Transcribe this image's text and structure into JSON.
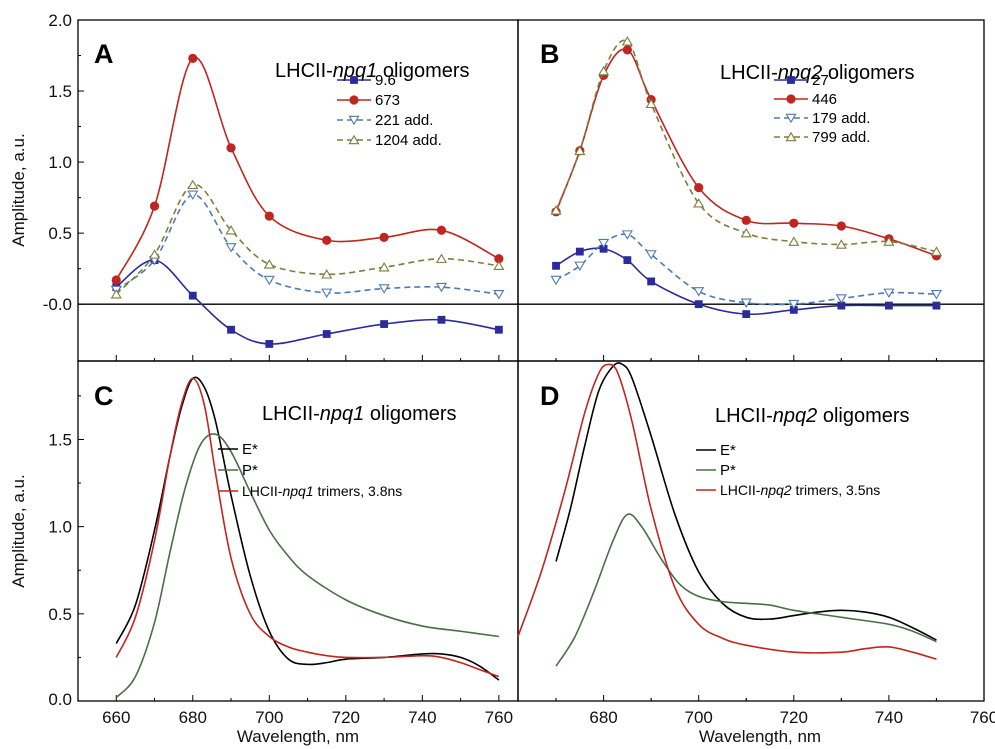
{
  "chart_data": [
    {
      "panel": "A",
      "type": "line",
      "title": "LHCII-npq1 oligomers",
      "title_prefix": "LHCII-",
      "title_italic": "npq1",
      "title_suffix": " oligomers",
      "ylabel": "Amplitude, a.u.",
      "xlim": [
        650,
        765
      ],
      "ylim": [
        -0.4,
        2.0
      ],
      "yticks": [
        "-0.0",
        "0.5",
        "1.0",
        "1.5",
        "2.0"
      ],
      "xticks": [
        "660",
        "680",
        "700",
        "720",
        "740",
        "760"
      ],
      "zero_line": true,
      "legend_position": "top-right",
      "series": [
        {
          "name": "9.6",
          "color": "#2b2b9c",
          "marker": "square",
          "dashed": false,
          "x": [
            660,
            670,
            680,
            690,
            700,
            715,
            730,
            745,
            760
          ],
          "y": [
            0.12,
            0.31,
            0.06,
            -0.18,
            -0.28,
            -0.21,
            -0.14,
            -0.11,
            -0.18
          ]
        },
        {
          "name": "673",
          "color": "#c0261f",
          "marker": "circle",
          "dashed": false,
          "x": [
            660,
            670,
            680,
            690,
            700,
            715,
            730,
            745,
            760
          ],
          "y": [
            0.17,
            0.69,
            1.73,
            1.1,
            0.62,
            0.45,
            0.47,
            0.52,
            0.32
          ]
        },
        {
          "name": "221 add.",
          "color": "#4d7ab0",
          "marker": "triangle-down",
          "dashed": true,
          "x": [
            660,
            670,
            680,
            690,
            700,
            715,
            730,
            745,
            760
          ],
          "y": [
            0.1,
            0.31,
            0.77,
            0.4,
            0.17,
            0.08,
            0.11,
            0.12,
            0.07
          ]
        },
        {
          "name": "1204 add.",
          "color": "#7d7d3c",
          "marker": "triangle-up",
          "dashed": true,
          "x": [
            660,
            670,
            680,
            690,
            700,
            715,
            730,
            745,
            760
          ],
          "y": [
            0.07,
            0.35,
            0.84,
            0.52,
            0.28,
            0.21,
            0.26,
            0.32,
            0.27
          ]
        }
      ]
    },
    {
      "panel": "B",
      "type": "line",
      "title": "LHCII-npq2 oligomers",
      "title_prefix": "LHCII-",
      "title_italic": "npq2",
      "title_suffix": " oligomers",
      "xlim": [
        662,
        760
      ],
      "ylim": [
        -0.4,
        2.0
      ],
      "zero_line": true,
      "legend_position": "top-right",
      "series": [
        {
          "name": "27",
          "color": "#2b2b9c",
          "marker": "square",
          "dashed": false,
          "x": [
            670,
            675,
            680,
            685,
            690,
            700,
            710,
            720,
            730,
            740,
            750
          ],
          "y": [
            0.27,
            0.37,
            0.39,
            0.31,
            0.16,
            0.0,
            -0.07,
            -0.04,
            -0.01,
            -0.01,
            -0.01
          ]
        },
        {
          "name": "446",
          "color": "#c0261f",
          "marker": "circle",
          "dashed": false,
          "x": [
            670,
            675,
            680,
            685,
            690,
            700,
            710,
            720,
            730,
            740,
            750
          ],
          "y": [
            0.65,
            1.08,
            1.61,
            1.79,
            1.44,
            0.82,
            0.59,
            0.57,
            0.55,
            0.46,
            0.34
          ]
        },
        {
          "name": "179 add.",
          "color": "#4d7ab0",
          "marker": "triangle-down",
          "dashed": true,
          "x": [
            670,
            675,
            680,
            685,
            690,
            700,
            710,
            720,
            730,
            740,
            750
          ],
          "y": [
            0.17,
            0.27,
            0.43,
            0.49,
            0.35,
            0.09,
            0.01,
            0.0,
            0.04,
            0.08,
            0.07
          ]
        },
        {
          "name": "799 add.",
          "color": "#7d7d3c",
          "marker": "triangle-up",
          "dashed": true,
          "x": [
            670,
            675,
            680,
            685,
            690,
            700,
            710,
            720,
            730,
            740,
            750
          ],
          "y": [
            0.66,
            1.08,
            1.64,
            1.85,
            1.41,
            0.71,
            0.5,
            0.44,
            0.42,
            0.44,
            0.37
          ]
        }
      ]
    },
    {
      "panel": "C",
      "type": "line",
      "title": "LHCII-npq1 oligomers",
      "title_prefix": "LHCII-",
      "title_italic": "npq1",
      "title_suffix": " oligomers",
      "xlabel": "Wavelength, nm",
      "ylabel": "Amplitude, a.u.",
      "xlim": [
        650,
        765
      ],
      "ylim": [
        0.0,
        1.95
      ],
      "yticks": [
        "0.0",
        "0.5",
        "1.0",
        "1.5"
      ],
      "xticks": [
        "660",
        "680",
        "700",
        "720",
        "740",
        "760"
      ],
      "legend_position": "top-right",
      "series": [
        {
          "name": "E*",
          "color": "#000000",
          "x": [
            660,
            665,
            670,
            674,
            677,
            680,
            683,
            686,
            690,
            695,
            700,
            705,
            710,
            715,
            720,
            730,
            740,
            745,
            750,
            755,
            760
          ],
          "y": [
            0.33,
            0.55,
            0.98,
            1.4,
            1.68,
            1.85,
            1.8,
            1.6,
            1.18,
            0.72,
            0.4,
            0.24,
            0.21,
            0.22,
            0.24,
            0.25,
            0.27,
            0.27,
            0.25,
            0.2,
            0.12
          ]
        },
        {
          "name": "P*",
          "color": "#4b6e46",
          "x": [
            660,
            665,
            670,
            674,
            678,
            682,
            686,
            690,
            695,
            700,
            705,
            710,
            720,
            730,
            740,
            750,
            760
          ],
          "y": [
            0.02,
            0.14,
            0.45,
            0.85,
            1.22,
            1.47,
            1.53,
            1.43,
            1.2,
            0.98,
            0.83,
            0.72,
            0.58,
            0.49,
            0.43,
            0.4,
            0.37
          ]
        },
        {
          "name": "LHCII-npq1 trimers, 3.8ns",
          "color": "#c0261f",
          "label_prefix": "LHCII-",
          "label_italic": "npq1",
          "label_suffix": " trimers, 3.8ns",
          "x": [
            660,
            665,
            670,
            674,
            677,
            680,
            683,
            686,
            690,
            695,
            700,
            705,
            710,
            715,
            720,
            730,
            740,
            745,
            750,
            755,
            760
          ],
          "y": [
            0.25,
            0.48,
            0.92,
            1.4,
            1.7,
            1.85,
            1.7,
            1.3,
            0.82,
            0.5,
            0.37,
            0.31,
            0.28,
            0.26,
            0.25,
            0.25,
            0.26,
            0.25,
            0.22,
            0.18,
            0.14
          ]
        }
      ]
    },
    {
      "panel": "D",
      "type": "line",
      "title": "LHCII-npq2 oligomers",
      "title_prefix": "LHCII-",
      "title_italic": "npq2",
      "title_suffix": " oligomers",
      "xlabel": "Wavelength, nm",
      "xlim": [
        662,
        760
      ],
      "ylim": [
        0.0,
        1.95
      ],
      "xticks": [
        "680",
        "700",
        "720",
        "740",
        "760"
      ],
      "legend_position": "top-right",
      "series": [
        {
          "name": "E*",
          "color": "#000000",
          "x": [
            670,
            673,
            676,
            679,
            682,
            684,
            686,
            690,
            695,
            700,
            705,
            710,
            715,
            720,
            725,
            730,
            735,
            740,
            745,
            750
          ],
          "y": [
            0.8,
            1.1,
            1.46,
            1.78,
            1.92,
            1.93,
            1.85,
            1.52,
            1.07,
            0.74,
            0.56,
            0.48,
            0.47,
            0.49,
            0.51,
            0.52,
            0.51,
            0.48,
            0.42,
            0.35
          ]
        },
        {
          "name": "P*",
          "color": "#4b6e46",
          "x": [
            670,
            674,
            678,
            682,
            685,
            688,
            692,
            696,
            700,
            705,
            710,
            715,
            720,
            730,
            740,
            745,
            750
          ],
          "y": [
            0.2,
            0.37,
            0.63,
            0.92,
            1.07,
            1.0,
            0.82,
            0.67,
            0.6,
            0.57,
            0.56,
            0.55,
            0.52,
            0.48,
            0.44,
            0.4,
            0.34
          ]
        },
        {
          "name": "LHCII-npq2 trimers, 3.5ns",
          "color": "#c0261f",
          "label_prefix": "LHCII-",
          "label_italic": "npq2",
          "label_suffix": " trimers, 3.5ns",
          "x": [
            662,
            667,
            672,
            676,
            679,
            681,
            683,
            686,
            690,
            695,
            700,
            705,
            710,
            720,
            730,
            735,
            740,
            745,
            750
          ],
          "y": [
            0.37,
            0.75,
            1.22,
            1.65,
            1.88,
            1.93,
            1.88,
            1.6,
            1.1,
            0.65,
            0.44,
            0.36,
            0.32,
            0.28,
            0.28,
            0.3,
            0.31,
            0.28,
            0.24
          ]
        }
      ]
    }
  ],
  "zero_label": "0.0",
  "bottom_xticks_left": [
    "660",
    "680",
    "700",
    "720",
    "740",
    "760"
  ],
  "bottom_xticks_right": [
    "680",
    "700",
    "720",
    "740",
    "760"
  ]
}
